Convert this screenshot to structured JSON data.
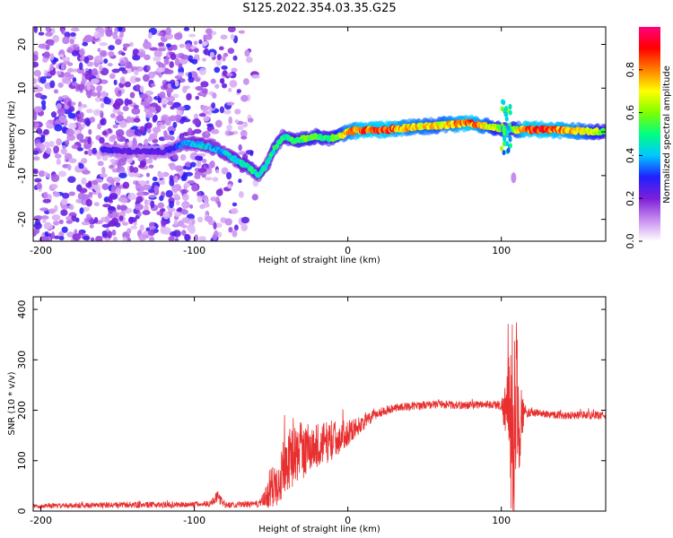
{
  "title": "S125.2022.354.03.35.G25",
  "chart_data": [
    {
      "type": "heatmap",
      "xlabel": "Height of straight line (km)",
      "ylabel": "Frequency (Hz)",
      "xlim": [
        -205,
        168
      ],
      "ylim": [
        -25,
        24
      ],
      "xticks": [
        -200,
        -100,
        0,
        100
      ],
      "yticks": [
        -20,
        -10,
        0,
        10,
        20
      ],
      "colorbar": {
        "label": "Normalized spectral amplitude",
        "range": [
          0,
          1
        ],
        "ticks": [
          "0.0",
          "0.2",
          "0.4",
          "0.6",
          "0.8"
        ],
        "colors": [
          "#ffffff",
          "#c88cf0",
          "#7b1fd8",
          "#2020ff",
          "#00c8ff",
          "#00ff80",
          "#80ff00",
          "#ffff00",
          "#ff8000",
          "#ff0000",
          "#ff0080"
        ]
      },
      "ridge": {
        "x": [
          -160,
          -140,
          -120,
          -105,
          -95,
          -85,
          -75,
          -65,
          -58,
          -52,
          -48,
          -42,
          -35,
          -28,
          -20,
          -12,
          -5,
          0,
          10,
          25,
          40,
          60,
          80,
          95,
          105,
          115,
          130,
          150,
          168
        ],
        "frequency": [
          -4,
          -4.5,
          -4.5,
          -2.5,
          -3,
          -4,
          -6,
          -8,
          -10,
          -7,
          -4,
          -1,
          -2,
          -1.5,
          -1,
          -1.5,
          -1,
          0,
          0.5,
          0.5,
          1,
          1.5,
          2,
          1,
          0.5,
          0.5,
          0.5,
          0.2,
          0
        ],
        "amplitude": [
          0.3,
          0.25,
          0.25,
          0.4,
          0.45,
          0.4,
          0.45,
          0.5,
          0.5,
          0.45,
          0.55,
          0.5,
          0.55,
          0.6,
          0.6,
          0.55,
          0.7,
          0.8,
          0.9,
          0.9,
          0.8,
          0.75,
          0.9,
          0.7,
          0.5,
          0.9,
          0.9,
          0.8,
          0.6
        ]
      }
    },
    {
      "type": "line",
      "xlabel": "Height of straight line (km)",
      "ylabel": "SNR (10 * v/v)",
      "xlim": [
        -205,
        168
      ],
      "ylim": [
        0,
        425
      ],
      "xticks": [
        -200,
        -100,
        0,
        100
      ],
      "yticks": [
        0,
        100,
        200,
        300,
        400
      ],
      "color": "#e83030",
      "envelope": {
        "x": [
          -205,
          -150,
          -100,
          -90,
          -85,
          -80,
          -60,
          -55,
          -50,
          -45,
          -40,
          -35,
          -30,
          -20,
          -10,
          0,
          10,
          20,
          30,
          40,
          50,
          60,
          70,
          80,
          90,
          100,
          104,
          106,
          108,
          110,
          112,
          115,
          120,
          140,
          168
        ],
        "mean": [
          10,
          12,
          13,
          15,
          28,
          12,
          14,
          20,
          40,
          70,
          100,
          110,
          120,
          130,
          140,
          155,
          175,
          195,
          205,
          208,
          210,
          212,
          210,
          210,
          212,
          210,
          200,
          180,
          180,
          200,
          190,
          195,
          195,
          190,
          190
        ],
        "noise": [
          4,
          6,
          6,
          6,
          12,
          6,
          6,
          15,
          40,
          60,
          60,
          60,
          60,
          45,
          40,
          25,
          15,
          10,
          8,
          8,
          8,
          8,
          8,
          8,
          8,
          10,
          80,
          180,
          220,
          180,
          100,
          10,
          8,
          8,
          8
        ]
      }
    }
  ]
}
